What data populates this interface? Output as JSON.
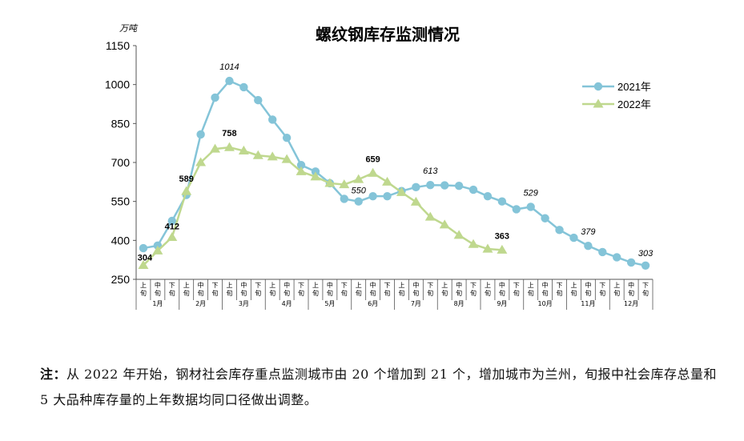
{
  "chart_data": {
    "type": "line",
    "title": "螺纹钢库存监测情况",
    "unit": "万吨",
    "ylim": [
      250,
      1150
    ],
    "yticks": [
      250,
      400,
      550,
      700,
      850,
      1000,
      1150
    ],
    "periods": [
      "上旬",
      "中旬",
      "下旬"
    ],
    "months": [
      "1月",
      "2月",
      "3月",
      "4月",
      "5月",
      "6月",
      "7月",
      "8月",
      "9月",
      "10月",
      "11月",
      "12月"
    ],
    "sub_labels": [
      "上\n旬",
      "中\n旬",
      "下\n旬"
    ],
    "legend_position": "right",
    "series": [
      {
        "name": "2021年",
        "color": "#84C4D8",
        "marker": "circle",
        "values": [
          370,
          380,
          475,
          575,
          808,
          950,
          1014,
          990,
          940,
          865,
          795,
          690,
          665,
          620,
          560,
          550,
          570,
          570,
          590,
          605,
          613,
          612,
          610,
          595,
          570,
          550,
          520,
          529,
          485,
          440,
          410,
          379,
          355,
          335,
          315,
          303
        ],
        "annotations": [
          {
            "index": 6,
            "text": "1014"
          },
          {
            "index": 15,
            "text": "550"
          },
          {
            "index": 20,
            "text": "613"
          },
          {
            "index": 27,
            "text": "529"
          },
          {
            "index": 31,
            "text": "379"
          },
          {
            "index": 35,
            "text": "303"
          }
        ]
      },
      {
        "name": "2022年",
        "color": "#BFD88E",
        "marker": "triangle",
        "values": [
          304,
          360,
          412,
          589,
          700,
          752,
          758,
          745,
          727,
          722,
          712,
          665,
          645,
          620,
          615,
          635,
          659,
          625,
          585,
          548,
          490,
          460,
          420,
          385,
          367,
          363
        ],
        "annotations": [
          {
            "index": 0,
            "text": "304"
          },
          {
            "index": 2,
            "text": "412"
          },
          {
            "index": 3,
            "text": "589"
          },
          {
            "index": 6,
            "text": "758"
          },
          {
            "index": 16,
            "text": "659"
          },
          {
            "index": 25,
            "text": "363"
          }
        ]
      }
    ]
  },
  "note": {
    "head": "注：",
    "text": "从 2022 年开始，钢材社会库存重点监测城市由 20 个增加到 21 个，增加城市为兰州，旬报中社会库存总量和 5 大品种库存量的上年数据均同口径做出调整。"
  }
}
